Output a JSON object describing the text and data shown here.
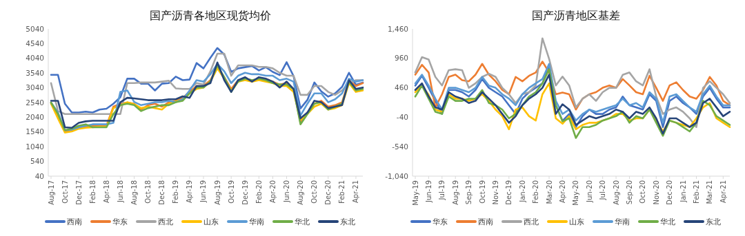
{
  "chart_data": [
    {
      "type": "line",
      "title": "国产沥青各地区现货均价",
      "legend": "bottom",
      "categories": [
        "Aug-17",
        null,
        "Oct-17",
        null,
        "Dec-17",
        null,
        "Feb-18",
        null,
        "Apr-18",
        null,
        "Jun-18",
        null,
        "Aug-18",
        null,
        "Oct-18",
        null,
        "Dec-18",
        null,
        "Feb-19",
        null,
        "Apr-19",
        null,
        "Jun-19",
        null,
        "Aug-19",
        null,
        "Oct-19",
        null,
        "Dec-19",
        null,
        "Feb-20",
        null,
        "Apr-20",
        null,
        "Jun-20",
        null,
        "Aug-20",
        null,
        "Oct-20",
        null,
        "Dec-20",
        null,
        "Feb-21",
        null,
        "Apr-21",
        null
      ],
      "ylim": [
        40,
        5040
      ],
      "yticks": [
        40,
        540,
        1040,
        1540,
        2040,
        2540,
        3040,
        3540,
        4040,
        4540,
        5040
      ],
      "series": [
        {
          "name": "西南",
          "color": "#4472c4",
          "values": [
            3480,
            3480,
            2500,
            2200,
            2200,
            2230,
            2200,
            2300,
            2330,
            2500,
            2720,
            3350,
            3350,
            3180,
            3180,
            2950,
            3180,
            3200,
            3420,
            3300,
            3320,
            3880,
            3700,
            4060,
            4390,
            4170,
            3580,
            3700,
            3740,
            3780,
            3630,
            3740,
            3580,
            3470,
            3910,
            3440,
            2340,
            2630,
            3220,
            2920,
            2740,
            2850,
            3070,
            3550,
            3140,
            3220
          ]
        },
        {
          "name": "华东",
          "color": "#ed7d31",
          "values": [
            2540,
            2100,
            1560,
            1600,
            1700,
            1720,
            1750,
            1750,
            1760,
            2400,
            2500,
            2540,
            2500,
            2300,
            2450,
            2500,
            2400,
            2550,
            2600,
            2700,
            2900,
            3100,
            3100,
            3300,
            3750,
            3400,
            3000,
            3300,
            3350,
            3300,
            3300,
            3350,
            3250,
            3150,
            3200,
            3000,
            1850,
            2200,
            2500,
            2600,
            2400,
            2450,
            2550,
            3300,
            3100,
            3200
          ]
        },
        {
          "name": "西北",
          "color": "#a5a5a5",
          "values": [
            3200,
            2250,
            2150,
            2150,
            2150,
            2150,
            2150,
            2150,
            2150,
            2150,
            2150,
            3200,
            3200,
            3220,
            3220,
            3220,
            3250,
            3280,
            3020,
            3000,
            3000,
            3200,
            3150,
            3600,
            4200,
            4200,
            3450,
            3800,
            3800,
            3800,
            3750,
            3750,
            3700,
            3550,
            3450,
            3450,
            2800,
            2800,
            3100,
            3100,
            2900,
            2800,
            2950,
            3200,
            3300,
            3300
          ]
        },
        {
          "name": "山东",
          "color": "#ffc000",
          "values": [
            2500,
            2000,
            1520,
            1560,
            1650,
            1680,
            1700,
            1720,
            1720,
            2350,
            2450,
            2550,
            2480,
            2350,
            2400,
            2350,
            2300,
            2500,
            2580,
            2650,
            2850,
            3000,
            3050,
            3250,
            3700,
            3350,
            2950,
            3250,
            3300,
            3250,
            3300,
            3250,
            3200,
            3100,
            3100,
            2900,
            1950,
            2150,
            2400,
            2500,
            2300,
            2350,
            2450,
            3200,
            2900,
            2950
          ]
        },
        {
          "name": "华南",
          "color": "#5b9bd5",
          "values": [
            2540,
            2200,
            1600,
            1620,
            1700,
            1750,
            1800,
            1800,
            1800,
            1850,
            2900,
            2950,
            2560,
            2450,
            2500,
            2550,
            2550,
            2600,
            2550,
            2650,
            2950,
            3300,
            3250,
            3500,
            3850,
            3600,
            3200,
            3450,
            3550,
            3500,
            3500,
            3450,
            3450,
            3300,
            3350,
            3250,
            2100,
            2500,
            2850,
            2850,
            2550,
            2650,
            2850,
            3350,
            3250,
            3300
          ]
        },
        {
          "name": "华北",
          "color": "#70ad47",
          "values": [
            2540,
            2150,
            1600,
            1650,
            1750,
            1800,
            1700,
            1700,
            1700,
            2150,
            2450,
            2500,
            2450,
            2250,
            2350,
            2400,
            2450,
            2450,
            2550,
            2600,
            2850,
            3050,
            3050,
            3250,
            3800,
            3400,
            2900,
            3250,
            3350,
            3300,
            3350,
            3300,
            3200,
            3150,
            3150,
            3000,
            1800,
            2150,
            2500,
            2550,
            2300,
            2400,
            2500,
            3250,
            2950,
            3000
          ]
        },
        {
          "name": "东北",
          "color": "#264478",
          "values": [
            2600,
            2600,
            1700,
            1680,
            1850,
            1900,
            1920,
            1920,
            1920,
            1920,
            2550,
            2700,
            2680,
            2650,
            2620,
            2620,
            2620,
            2650,
            2650,
            2750,
            2700,
            3100,
            3100,
            3200,
            3900,
            3300,
            2900,
            3300,
            3400,
            3250,
            3400,
            3350,
            3250,
            3050,
            3250,
            3000,
            2000,
            2200,
            2600,
            2550,
            2350,
            2400,
            2450,
            3300,
            3000,
            3050
          ]
        }
      ]
    },
    {
      "type": "line",
      "title": "国产沥青地区基差",
      "legend": "bottom",
      "categories": [
        "May-19",
        null,
        "Jun-19",
        null,
        "Jul-19",
        null,
        "Aug-19",
        null,
        "Sep-19",
        null,
        "Oct-19",
        null,
        "Nov-19",
        null,
        "Dec-19",
        null,
        "Jan-20",
        null,
        "Feb-20",
        null,
        "Mar-20",
        null,
        "Apr-20",
        null,
        "May-20",
        null,
        "Jun-20",
        null,
        "Jul-20",
        null,
        "Aug-20",
        null,
        "Sep-20",
        null,
        "Oct-20",
        null,
        "Nov-20",
        null,
        "Dec-20",
        null,
        "Jan-21",
        null,
        "Feb-21",
        null,
        "Mar-21",
        null,
        "Apr-21",
        null
      ],
      "ylim": [
        -1040,
        1460
      ],
      "yticks": [
        {
          "value": -1040,
          "label": "-1,040"
        },
        -540,
        -40,
        460,
        960,
        {
          "value": 1460,
          "label": "1,460"
        }
      ],
      "series": [
        {
          "name": "华东",
          "color": "#4472c4",
          "values": [
            497,
            664,
            460,
            238,
            16,
            423,
            423,
            385,
            312,
            423,
            608,
            460,
            385,
            312,
            164,
            16,
            275,
            385,
            460,
            535,
            830,
            164,
            -100,
            16,
            -207,
            -22,
            90,
            16,
            16,
            90,
            127,
            312,
            164,
            127,
            90,
            350,
            238,
            -207,
            238,
            312,
            201,
            127,
            16,
            312,
            460,
            275,
            127,
            127
          ]
        },
        {
          "name": "西南",
          "color": "#ed7d31",
          "values": [
            683,
            850,
            720,
            127,
            350,
            645,
            683,
            590,
            570,
            683,
            867,
            683,
            570,
            423,
            350,
            645,
            570,
            664,
            720,
            905,
            720,
            350,
            380,
            350,
            90,
            275,
            350,
            385,
            460,
            500,
            460,
            608,
            500,
            385,
            350,
            664,
            460,
            238,
            500,
            553,
            423,
            312,
            275,
            423,
            645,
            500,
            238,
            164
          ]
        },
        {
          "name": "西北",
          "color": "#a5a5a5",
          "values": [
            720,
            980,
            940,
            645,
            500,
            760,
            775,
            760,
            460,
            535,
            645,
            700,
            645,
            460,
            350,
            200,
            350,
            385,
            500,
            1300,
            950,
            500,
            650,
            500,
            127,
            275,
            350,
            238,
            385,
            460,
            460,
            680,
            720,
            570,
            500,
            775,
            312,
            16,
            90,
            127,
            53,
            -59,
            -207,
            460,
            570,
            460,
            350,
            200
          ]
        },
        {
          "name": "山东",
          "color": "#ffc000",
          "values": [
            385,
            497,
            340,
            90,
            53,
            350,
            275,
            275,
            238,
            275,
            350,
            238,
            90,
            -22,
            -244,
            90,
            127,
            -22,
            -96,
            350,
            535,
            -59,
            -150,
            -22,
            -244,
            -170,
            -133,
            -133,
            -96,
            -59,
            16,
            16,
            -96,
            -59,
            -59,
            90,
            -96,
            -281,
            -96,
            -133,
            -170,
            -207,
            -59,
            127,
            201,
            -59,
            -133,
            -207
          ]
        },
        {
          "name": "华南",
          "color": "#5b9bd5",
          "values": [
            535,
            683,
            497,
            275,
            90,
            460,
            460,
            423,
            385,
            460,
            645,
            497,
            460,
            350,
            275,
            164,
            350,
            460,
            535,
            608,
            867,
            238,
            16,
            90,
            -96,
            16,
            90,
            53,
            90,
            127,
            164,
            275,
            164,
            201,
            127,
            385,
            275,
            -133,
            312,
            350,
            238,
            127,
            53,
            350,
            497,
            312,
            164,
            164
          ]
        },
        {
          "name": "华北",
          "color": "#70ad47",
          "values": [
            312,
            497,
            275,
            53,
            16,
            312,
            238,
            238,
            275,
            275,
            423,
            201,
            164,
            90,
            -59,
            16,
            164,
            312,
            385,
            535,
            775,
            164,
            -110,
            -59,
            -392,
            -207,
            -207,
            -170,
            -96,
            -59,
            -22,
            53,
            -133,
            -22,
            -59,
            90,
            -133,
            -355,
            -96,
            -133,
            -207,
            -281,
            -133,
            238,
            164,
            -22,
            -96,
            -170
          ]
        },
        {
          "name": "东北",
          "color": "#264478",
          "values": [
            423,
            535,
            312,
            127,
            90,
            385,
            312,
            275,
            201,
            238,
            385,
            275,
            164,
            16,
            -133,
            -22,
            164,
            275,
            350,
            460,
            683,
            16,
            180,
            90,
            -170,
            -96,
            -22,
            -59,
            -22,
            16,
            90,
            53,
            -59,
            53,
            16,
            127,
            -59,
            -318,
            -59,
            -59,
            -133,
            -207,
            -133,
            201,
            275,
            127,
            -22,
            53
          ]
        }
      ]
    }
  ]
}
